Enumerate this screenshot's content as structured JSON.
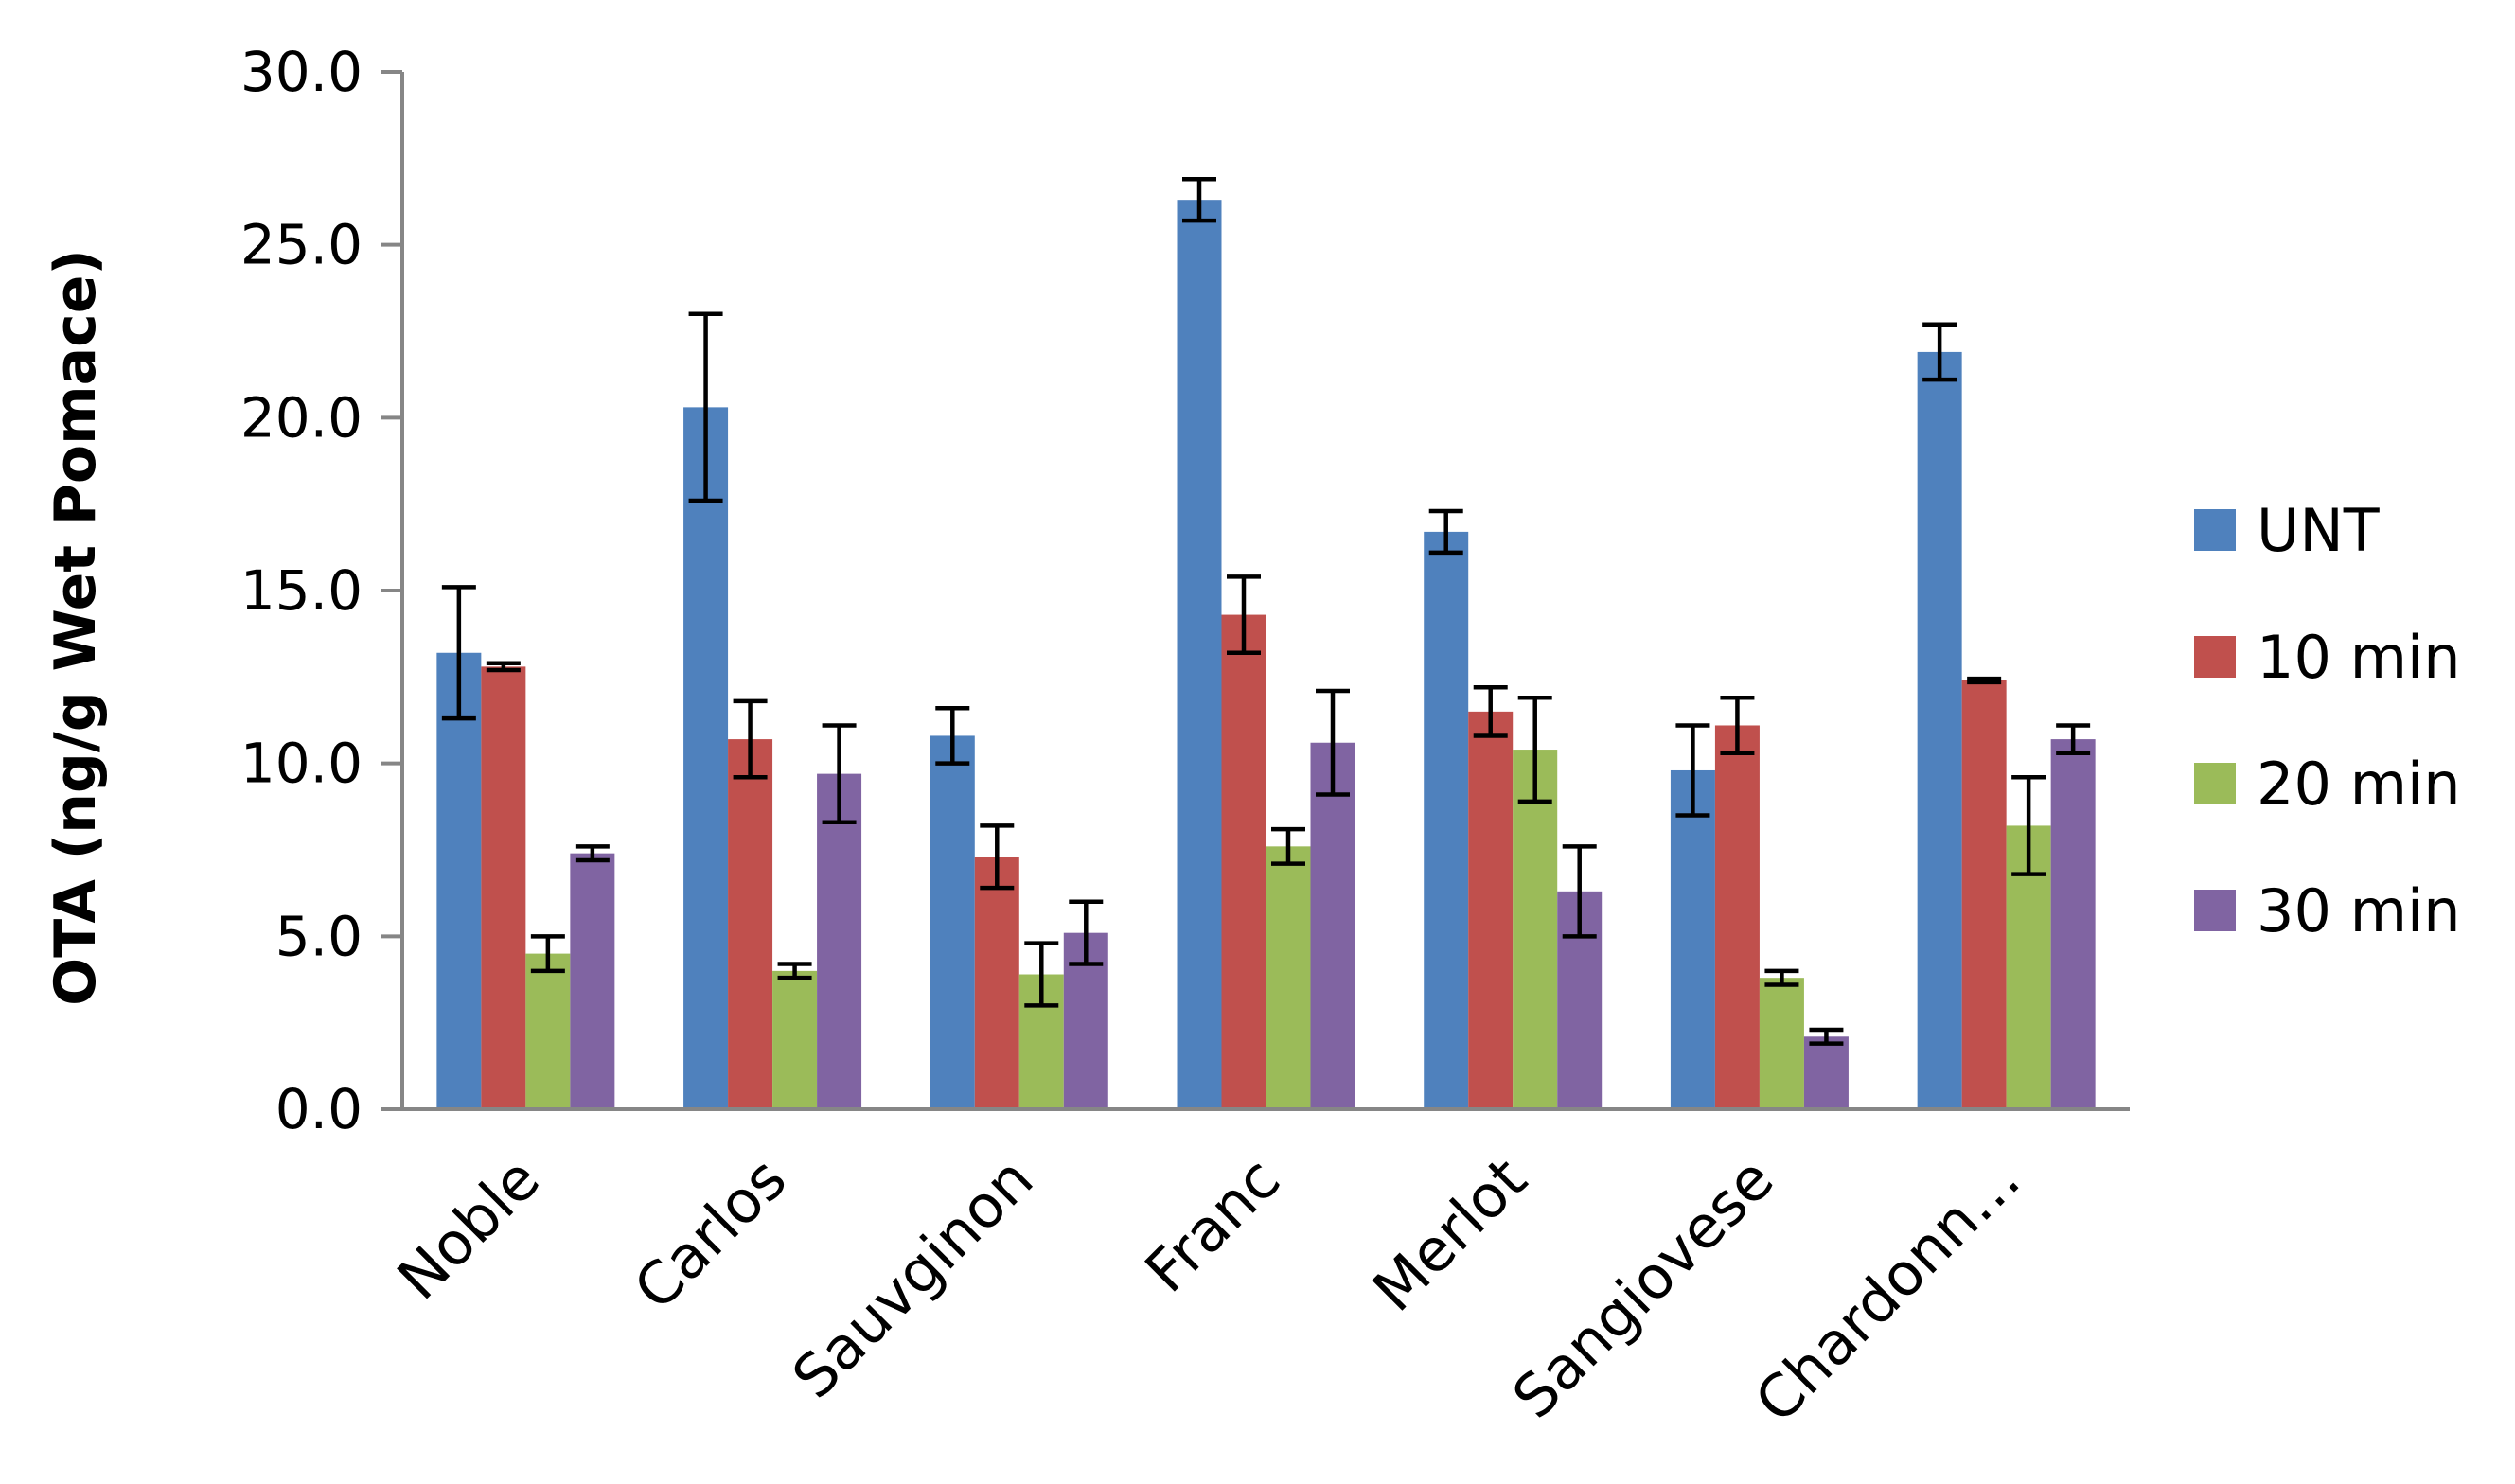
{
  "chart_data": {
    "type": "bar",
    "title": "",
    "xlabel": "",
    "ylabel": "OTA (ng/g Wet Pomace)",
    "ylim": [
      0,
      30
    ],
    "ytick_step": 5,
    "yticks": [
      "0.0",
      "5.0",
      "10.0",
      "15.0",
      "20.0",
      "25.0",
      "30.0"
    ],
    "grid": false,
    "legend_position": "right",
    "categories": [
      "Noble",
      "Carlos",
      "Sauvginon",
      "Franc",
      "Merlot",
      "Sangiovese",
      "Chardonn…"
    ],
    "series": [
      {
        "name": "UNT",
        "color": "#4f81bd",
        "values": [
          13.2,
          20.3,
          10.8,
          26.3,
          16.7,
          9.8,
          21.9
        ],
        "errors": [
          1.9,
          2.7,
          0.8,
          0.6,
          0.6,
          1.3,
          0.8
        ]
      },
      {
        "name": "10 min",
        "color": "#c0504d",
        "values": [
          12.8,
          10.7,
          7.3,
          14.3,
          11.5,
          11.1,
          12.4
        ],
        "errors": [
          0.1,
          1.1,
          0.9,
          1.1,
          0.7,
          0.8,
          0.05
        ]
      },
      {
        "name": "20 min",
        "color": "#9bbb59",
        "values": [
          4.5,
          4.0,
          3.9,
          7.6,
          10.4,
          3.8,
          8.2
        ],
        "errors": [
          0.5,
          0.2,
          0.9,
          0.5,
          1.5,
          0.2,
          1.4
        ]
      },
      {
        "name": "30 min",
        "color": "#8064a2",
        "values": [
          7.4,
          9.7,
          5.1,
          10.6,
          6.3,
          2.1,
          10.7
        ],
        "errors": [
          0.2,
          1.4,
          0.9,
          1.5,
          1.3,
          0.2,
          0.4
        ]
      }
    ]
  }
}
